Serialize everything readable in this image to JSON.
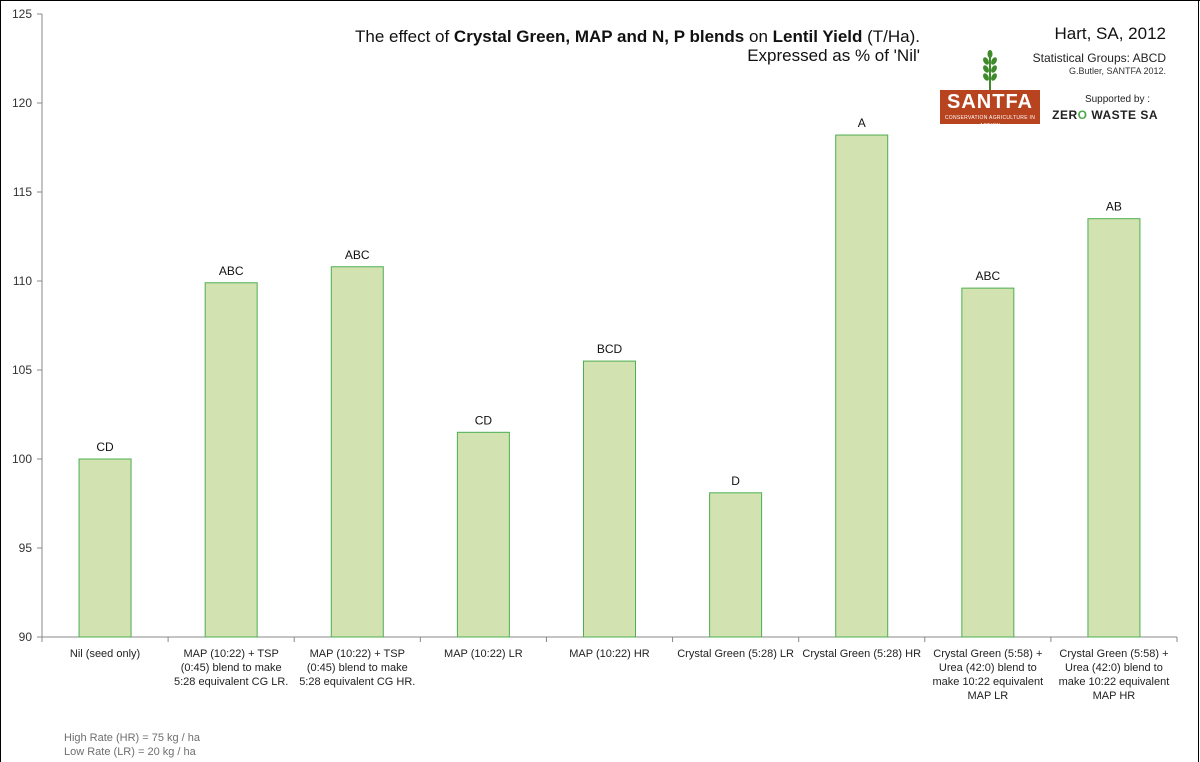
{
  "title": {
    "prefix": "The effect of ",
    "bold1": "Crystal Green, MAP and N, P blends",
    "mid": " on ",
    "bold2": "Lentil Yield",
    "suffix": " (T/Ha).",
    "line2": "Expressed as % of 'Nil'"
  },
  "header_right": {
    "site": "Hart, SA, 2012",
    "groups": "Statistical Groups: ABCD",
    "credit": "G.Butler, SANTFA 2012.",
    "supported_by": "Supported by :",
    "sponsor_a": "ZER",
    "sponsor_b": "WASTE SA",
    "logo_name": "SANTFA",
    "logo_tag": "CONSERVATION AGRICULTURE IN ACTION"
  },
  "notes": {
    "high": "High Rate (HR) = 75 kg / ha",
    "low": "Low Rate (LR) = 20 kg / ha"
  },
  "colors": {
    "bar_fill": "#d3e2b1",
    "bar_stroke": "#4caf50",
    "axis": "#888888",
    "logo_bg": "#b8431f",
    "wheat": "#3f8a2a"
  },
  "icons": [
    "wheat-icon",
    "santfa-logo",
    "zero-waste-logo"
  ],
  "chart_data": {
    "type": "bar",
    "categories": [
      [
        "Nil (seed only)"
      ],
      [
        "MAP (10:22) + TSP",
        "(0:45) blend to make",
        "5:28 equivalent CG LR."
      ],
      [
        "MAP (10:22) + TSP",
        "(0:45) blend to make",
        "5:28 equivalent CG HR."
      ],
      [
        "MAP (10:22) LR"
      ],
      [
        "MAP (10:22) HR"
      ],
      [
        "Crystal Green (5:28) LR"
      ],
      [
        "Crystal Green (5:28) HR"
      ],
      [
        "Crystal Green (5:58) +",
        "Urea (42:0) blend to",
        "make 10:22 equivalent",
        "MAP LR"
      ],
      [
        "Crystal Green (5:58) +",
        "Urea (42:0) blend to",
        "make 10:22 equivalent",
        "MAP HR"
      ]
    ],
    "values": [
      100,
      109.9,
      110.8,
      101.5,
      105.5,
      98.1,
      118.2,
      109.6,
      113.5
    ],
    "group_labels": [
      "CD",
      "ABC",
      "ABC",
      "CD",
      "BCD",
      "D",
      "A",
      "ABC",
      "AB"
    ],
    "ylim": [
      90,
      125
    ],
    "yticks": [
      "90",
      "95",
      "100",
      "105",
      "110",
      "115",
      "120",
      "125"
    ],
    "grid": false,
    "xlabel": "",
    "ylabel": ""
  }
}
